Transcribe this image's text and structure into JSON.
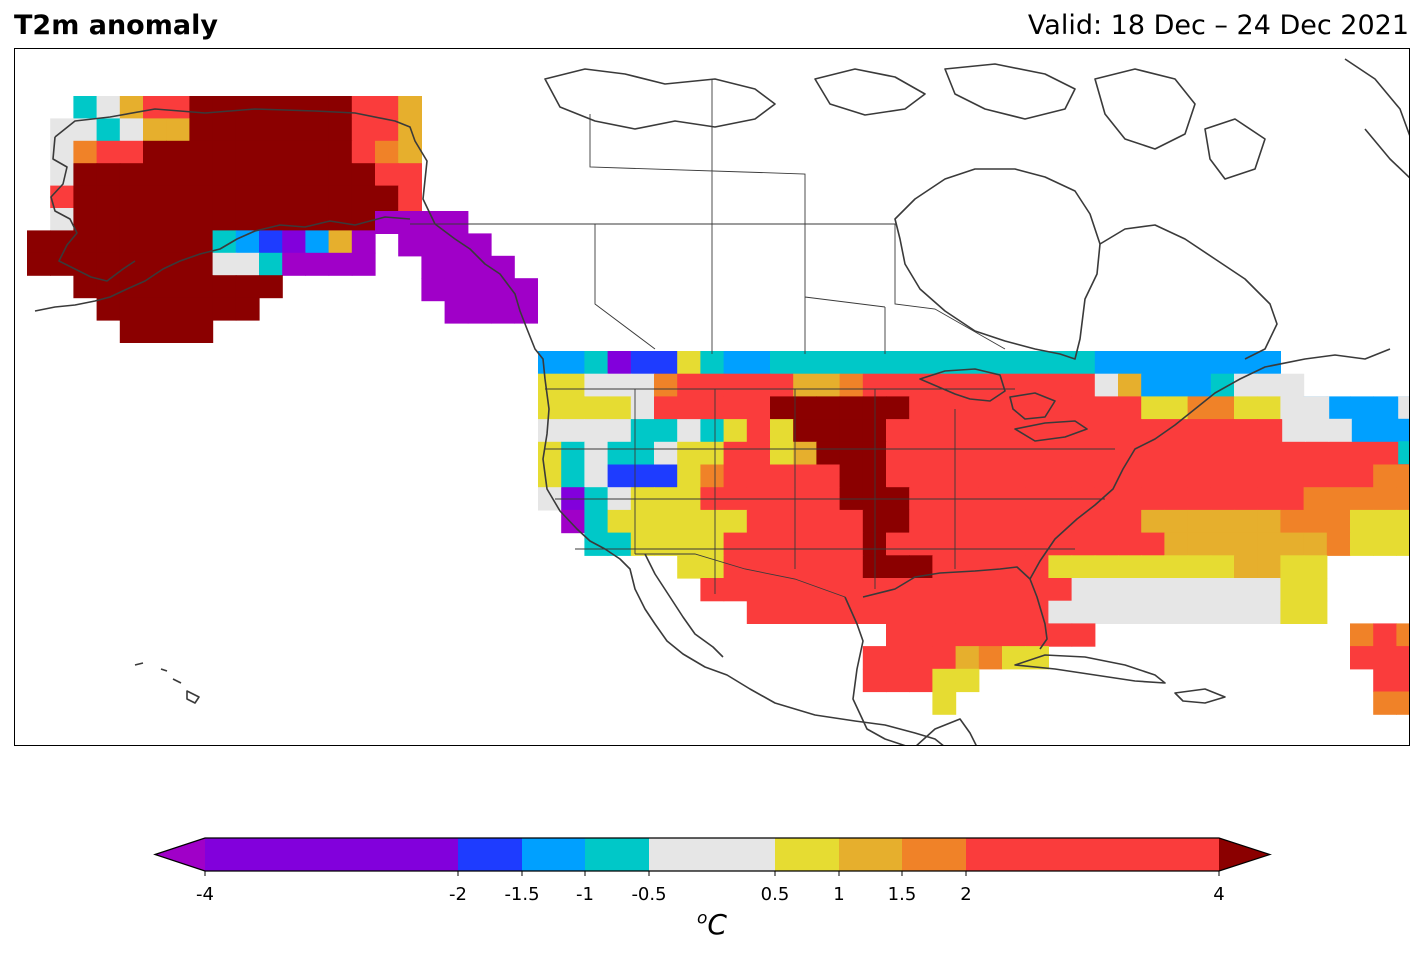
{
  "header": {
    "title": "T2m anomaly",
    "valid": "Valid: 18 Dec – 24 Dec 2021"
  },
  "colorbar": {
    "unit": "C",
    "unit_superscript": "o",
    "ticks": [
      "-4",
      "-2",
      "-1.5",
      "-1",
      "-0.5",
      "0.5",
      "1",
      "1.5",
      "2",
      "4"
    ],
    "bins": [
      {
        "from": -4,
        "to": -2,
        "color": "#8200dc"
      },
      {
        "from": -2,
        "to": -1.5,
        "color": "#1e3cff"
      },
      {
        "from": -1.5,
        "to": -1,
        "color": "#00a0ff"
      },
      {
        "from": -1,
        "to": -0.5,
        "color": "#00c8c8"
      },
      {
        "from": -0.5,
        "to": 0.5,
        "color": "#e6e6e6"
      },
      {
        "from": 0.5,
        "to": 1,
        "color": "#e6dc32"
      },
      {
        "from": 1,
        "to": 1.5,
        "color": "#e6af2d"
      },
      {
        "from": 1.5,
        "to": 2,
        "color": "#f08228"
      },
      {
        "from": 2,
        "to": 4,
        "color": "#fa3c3c"
      }
    ],
    "under_color": "#a000c8",
    "over_color": "#8b0000"
  },
  "map_data": {
    "type": "gridded-anomaly",
    "variable": "2 m temperature anomaly",
    "units": "degC",
    "legend": {
      "P": "#a000c8",
      "V": "#8200dc",
      "B": "#1e3cff",
      "L": "#00a0ff",
      "C": "#00c8c8",
      "G": "#e6e6e6",
      "Y": "#e6dc32",
      "O": "#e6af2d",
      "N": "#f08228",
      "R": "#fa3c3c",
      "D": "#8b0000"
    },
    "regions": [
      {
        "name": "alaska",
        "rows": [
          "..CGORRDDDDDDDRRO.",
          ".GGCGOODDDDDDDRRO.",
          ".GNRRDDDDDDDDDRNO.",
          ".GDDDDDDDDDDDDDRR.",
          ".RDDDDDDDDDDDDDDR.",
          ".GDDDDDDDDDDDDDDR.",
          "DDDDDDDDCLBVLOP...",
          "DDDDDDDDGGCPPPP...",
          "..DDDDDDDDD.......",
          "...DDDDDDD........",
          "....DDDD.........."
        ]
      },
      {
        "name": "panhandle",
        "rows": [
          "PPPP...",
          ".PPPP..",
          "..PPPP.",
          "..PPPPP",
          "...PPPP"
        ]
      },
      {
        "name": "conus",
        "rows": [
          "LLCVBBYCLLCCCCCCCCCCCCCCLLLLLLLL...........",
          "YYGGGNRRRRROONRRRRRRRRRRGOLLLCGGG...........",
          "YYYYGRRRRRDDDDDDRRRRRRRRRRYYNNYYGLLLLLLLLLLC",
          "GGGGCCGCYRYDDDDRRRRRRRRRRRRRRRRRRRRRRRRRRGGG",
          "YCGCCGYYRRYODDDRRRRRRRRRRRRRRRRRRRRRRRRRRRGY",
          "YCGBBBYNRRRRRDDRRRRRRRRRRRRRRRRRRRRRNNNRRRGG",
          "GVCGYYYRRRRRRDDDRRRRRRRRRRRRRRRRRNNNNNNNRRGG",
          ".PCYYYYYYRRRRRDDRRRRRRRRRROOOOOONNNYYYYYY...",
          "..CCYYYYRRRRRRDRRRRRRRRRRRROOOOOOONYYYYYY...",
          "......YYRRRRRRDDDRRRRRYYYYYYYYOOYY.........",
          ".......RRRRRRRRRRRRRRRRGGGGGGGGGYY.........",
          ".........RRRRRRRRRRRRRGGGGGGGGGGYY.........",
          "...............RRRRRRRRR...........NRN.....",
          "..............RRRRONYY.............RRRN....",
          "..............RRRYY.................RRN....",
          ".................Y..................NNNN..."
        ]
      },
      {
        "name": "northeast",
        "rows": [
          "....................PBB...",
          "...........GG...GLLLLLLCC.",
          "...........GGGLLLLLLLCC...",
          "................CLLCCC....",
          "..................CC......"
        ]
      }
    ]
  }
}
